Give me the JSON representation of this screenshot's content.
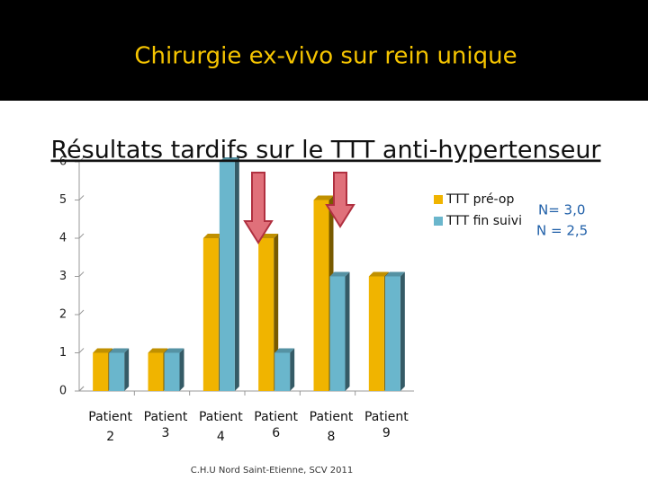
{
  "title": "Chirurgie ex-vivo sur rein unique",
  "chart_data": {
    "type": "bar",
    "title": "Résultats tardifs sur le TTT anti-hypertenseur",
    "categories": [
      "Patient 2",
      "Patient 3",
      "Patient 4",
      "Patient 6",
      "Patient 8",
      "Patient 9"
    ],
    "series": [
      {
        "name": "TTT pré-op",
        "color": "#f0b400",
        "values": [
          1,
          1,
          4,
          4,
          5,
          3
        ]
      },
      {
        "name": "TTT fin suivi",
        "color": "#6ab6cc",
        "values": [
          1,
          1,
          6,
          1,
          3,
          3
        ]
      }
    ],
    "ylim": [
      0,
      6
    ],
    "yticks": [
      0,
      1,
      2,
      3,
      4,
      5,
      6
    ],
    "annotations": [
      "N= 3,0",
      "N = 2,5"
    ]
  },
  "footer": "C.H.U Nord Saint-Etienne, SCV 2011"
}
